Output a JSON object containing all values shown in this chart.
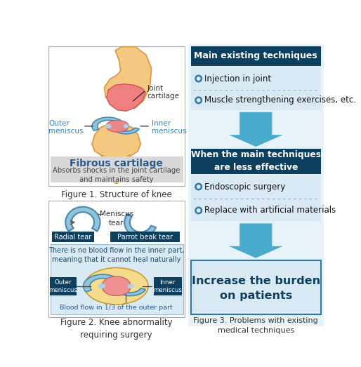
{
  "fig_width": 5.14,
  "fig_height": 5.23,
  "dpi": 100,
  "bg_color": "#ffffff",
  "dark_teal": "#0d3f5f",
  "mid_teal": "#2a7aaa",
  "light_blue_box": "#daeaf4",
  "arrow_color": "#4aabcc",
  "fig1_title": "Fibrous cartilage",
  "fig1_subtitle": "Absorbs shocks in the joint cartilage\nand maintains safety",
  "fig1_caption": "Figure 1. Structure of knee",
  "fig2_caption": "Figure 2. Knee abnormality\nrequiring surgery",
  "fig3_caption": "Figure 3. Problems with existing\nmedical techniques",
  "main_tech_title": "Main existing techniques",
  "item1": "Injection in joint",
  "item2": "Muscle strengthening exercises, etc.",
  "when_title": "When the main techniques\nare less effective",
  "item3": "Endoscopic surgery",
  "item4": "Replace with artificial materials",
  "burden_text": "Increase the burden\non patients",
  "outer_meniscus": "Outer\nmeniscus",
  "inner_meniscus": "Inner\nmeniscus",
  "joint_cartilage": "Joint\ncartilage",
  "fibrous_cartilage": "Fibrous cartilage",
  "meniscus_tear": "Meniscus\ntear",
  "radial_tear": "Radial tear",
  "parrot_beak": "Parrot beak tear",
  "no_blood_text": "There is no blood flow in the inner part,\nmeaning that it cannot heal naturally",
  "blood_flow_text": "Blood flow in 1/3 of the outer part"
}
